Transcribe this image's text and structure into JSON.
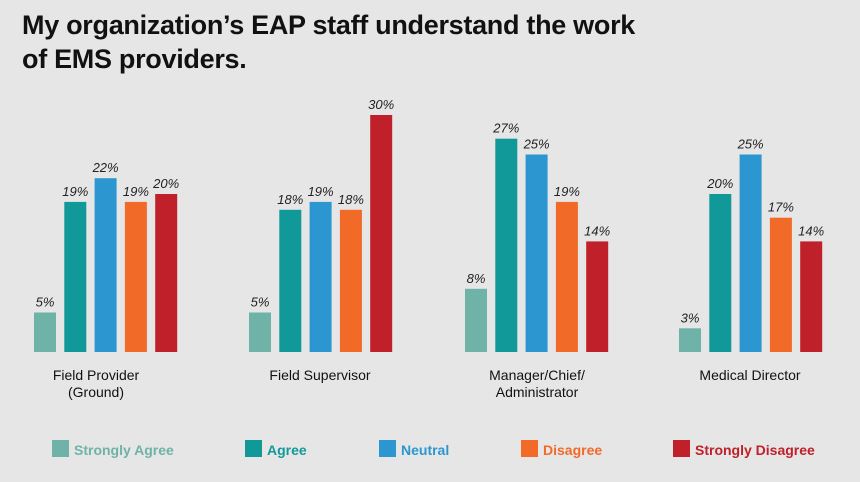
{
  "chart_data": {
    "type": "bar",
    "title": "My organization’s EAP staff understand the work of EMS providers.",
    "categories": [
      [
        "Field Provider",
        "(Ground)"
      ],
      [
        "Field Supervisor"
      ],
      [
        "Manager/Chief/",
        "Administrator"
      ],
      [
        "Medical Director"
      ]
    ],
    "series": [
      {
        "name": "Strongly Agree",
        "color": "#6fb3a8",
        "values": [
          5,
          5,
          8,
          3
        ]
      },
      {
        "name": "Agree",
        "color": "#11999a",
        "values": [
          19,
          18,
          27,
          20
        ]
      },
      {
        "name": "Neutral",
        "color": "#2b96cf",
        "values": [
          22,
          19,
          25,
          25
        ]
      },
      {
        "name": "Disagree",
        "color": "#f26a27",
        "values": [
          19,
          18,
          19,
          17
        ]
      },
      {
        "name": "Strongly Disagree",
        "color": "#c0202a",
        "values": [
          20,
          30,
          14,
          14
        ]
      }
    ],
    "value_suffix": "%",
    "ylim": [
      0,
      30
    ],
    "xlabel": "",
    "ylabel": "",
    "grid": false,
    "legend_position": "bottom"
  }
}
